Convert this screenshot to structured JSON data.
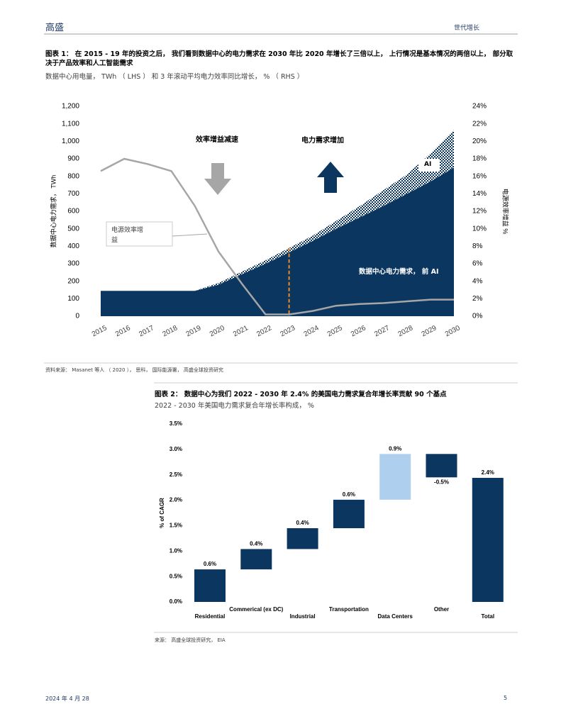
{
  "header": {
    "brand": "高盛",
    "section": "世代增长"
  },
  "chart_data": [
    {
      "type": "area",
      "title": "图表 1： 在 2015 - 19 年的投资之后， 我们看到数据中心的电力需求在 2030 年比 2020 年增长了三倍以上， 上行情况是基本情况的两倍以上， 部分取决于产品效率和人工智能需求",
      "subtitle": "数据中心用电量， TWh （ LHS ） 和 3 年滚动平均电力效率同比增长， % （ RHS ）",
      "x": [
        2015,
        2016,
        2017,
        2018,
        2019,
        2020,
        2021,
        2022,
        2023,
        2024,
        2025,
        2026,
        2027,
        2028,
        2029,
        2030
      ],
      "xlim": [
        2015,
        2030
      ],
      "series": [
        {
          "name": "数据中心电力需求， 前 AI",
          "color": "#0b3660",
          "values": [
            145,
            145,
            145,
            145,
            145,
            180,
            240,
            300,
            365,
            430,
            500,
            565,
            630,
            700,
            770,
            850
          ]
        },
        {
          "name": "AI",
          "color": "#0b3660",
          "pattern": "hatch",
          "values": [
            0,
            0,
            0,
            0,
            0,
            10,
            15,
            20,
            25,
            30,
            45,
            65,
            90,
            110,
            160,
            215
          ]
        },
        {
          "name": "电源效率增益",
          "type": "line",
          "axis": "y2",
          "color": "#a6a6a6",
          "values": [
            16.6,
            18.0,
            17.4,
            16.6,
            12.6,
            7.4,
            3.7,
            0.2,
            0.2,
            0.6,
            1.2,
            1.4,
            1.5,
            1.7,
            1.9,
            1.9
          ]
        }
      ],
      "ylim": [
        0,
        1200
      ],
      "yticks": [
        0,
        100,
        200,
        300,
        400,
        500,
        600,
        700,
        800,
        900,
        {
          "value": 1000,
          "label": "1,000"
        },
        {
          "value": 1100,
          "label": "1,100"
        },
        {
          "value": 1200,
          "label": "1,200"
        }
      ],
      "y2lim": [
        0,
        24
      ],
      "y2ticks": [
        {
          "value": 0,
          "label": "0%"
        },
        {
          "value": 2,
          "label": "2%"
        },
        {
          "value": 4,
          "label": "4%"
        },
        {
          "value": 6,
          "label": "6%"
        },
        {
          "value": 8,
          "label": "8%"
        },
        {
          "value": 10,
          "label": "10%"
        },
        {
          "value": 12,
          "label": "12%"
        },
        {
          "value": 14,
          "label": "14%"
        },
        {
          "value": 16,
          "label": "16%"
        },
        {
          "value": 18,
          "label": "18%"
        },
        {
          "value": 20,
          "label": "20%"
        },
        {
          "value": 22,
          "label": "22%"
        },
        {
          "value": 24,
          "label": "24%"
        }
      ],
      "ylabel": "数据中心电力需求， TWh",
      "y2label": "电源效率增益 %",
      "annotations": [
        "效率增益减速",
        "电力需求增加"
      ],
      "source": "资料来源： Masanet 等人 （ 2020 ）， 思科， 国际能源署， 高盛全球投资研究"
    },
    {
      "type": "waterfall",
      "title": "图表 2： 数据中心为我们 2022 - 2030 年 2.4% 的美国电力需求复合年增长率贡献 90 个基点",
      "subtitle": "2022 - 2030 年美国电力需求复合年增长率构成， %",
      "categories": [
        "Residential",
        "Commerical (ex DC)",
        "Industrial",
        "Transportation",
        "Data Centers",
        "Other",
        "Total"
      ],
      "values": [
        0.64,
        0.4,
        0.41,
        0.56,
        0.9,
        -0.46,
        2.44
      ],
      "value_labels": [
        "0.6%",
        "0.4%",
        "0.4%",
        "0.6%",
        "0.9%",
        "-0.5%",
        "2.4%"
      ],
      "colors": [
        "#0b3660",
        "#0b3660",
        "#0b3660",
        "#0b3660",
        "#aed0ee",
        "#0b3660",
        "#0b3660"
      ],
      "ylim": [
        0,
        3.5
      ],
      "yticks": [
        {
          "value": 0,
          "label": "0.0%"
        },
        {
          "value": 0.5,
          "label": "0.5%"
        },
        {
          "value": 1,
          "label": "1.0%"
        },
        {
          "value": 1.5,
          "label": "1.5%"
        },
        {
          "value": 2,
          "label": "2.0%"
        },
        {
          "value": 2.5,
          "label": "2.5%"
        },
        {
          "value": 3,
          "label": "3.0%"
        },
        {
          "value": 3.5,
          "label": "3.5%"
        }
      ],
      "ylabel": "% of CAGR",
      "source": "来源： 高盛全球投资研究， EIA"
    }
  ],
  "footer": {
    "date": "2024 年 4 月 28",
    "page": "5"
  }
}
